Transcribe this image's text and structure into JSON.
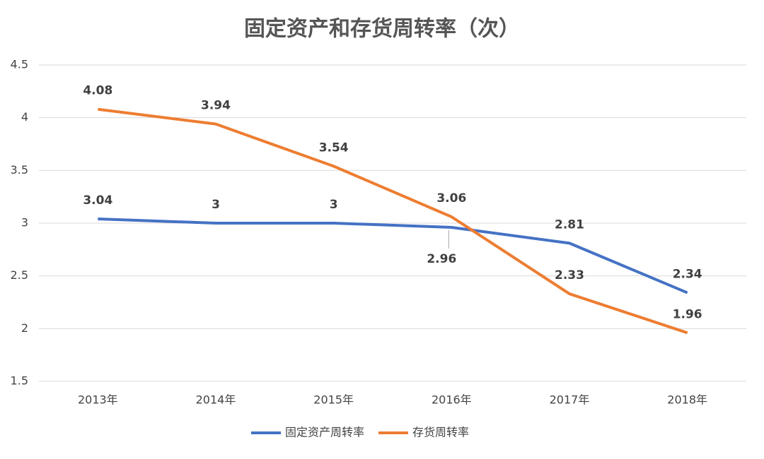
{
  "chart_data": {
    "type": "line",
    "title": "固定资产和存货周转率（次）",
    "categories": [
      "2013年",
      "2014年",
      "2015年",
      "2016年",
      "2017年",
      "2018年"
    ],
    "series": [
      {
        "name": "固定资产周转率",
        "color": "#4472c4",
        "values": [
          3.04,
          3,
          3,
          2.96,
          2.81,
          2.34
        ]
      },
      {
        "name": "存货周转率",
        "color": "#ed7d31",
        "values": [
          4.08,
          3.94,
          3.54,
          3.06,
          2.33,
          1.96
        ]
      }
    ],
    "ylim": [
      1.5,
      4.5
    ],
    "yticks": [
      1.5,
      2,
      2.5,
      3,
      3.5,
      4,
      4.5
    ],
    "grid": true
  }
}
